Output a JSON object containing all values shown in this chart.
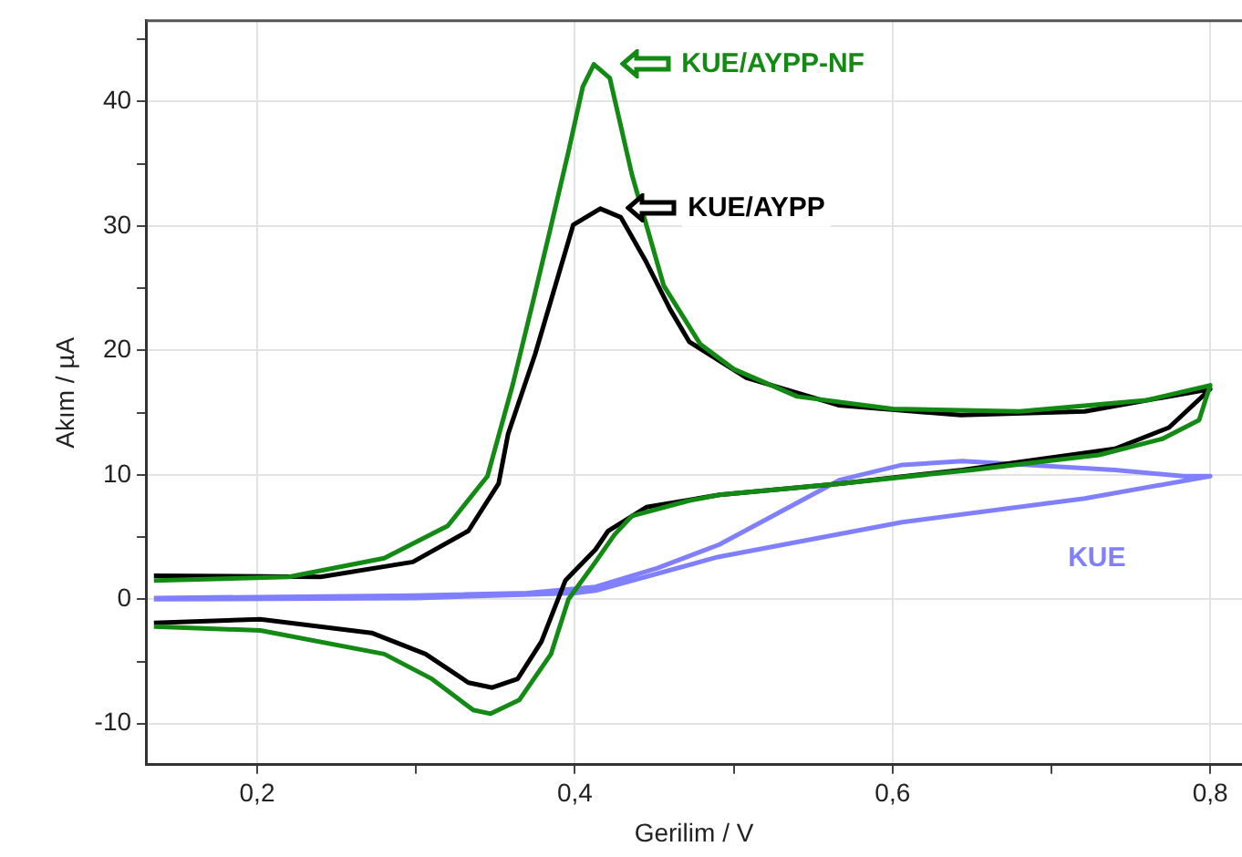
{
  "chart_data": {
    "type": "line",
    "xlabel": "Gerilim / V",
    "ylabel": "Akım / µA",
    "xlim": [
      0.13,
      0.82
    ],
    "ylim": [
      -13.3,
      46.5
    ],
    "xticks": [
      {
        "value": 0.2,
        "label": "0,2"
      },
      {
        "value": 0.3,
        "label": null
      },
      {
        "value": 0.4,
        "label": "0,4"
      },
      {
        "value": 0.5,
        "label": null
      },
      {
        "value": 0.6,
        "label": "0,6"
      },
      {
        "value": 0.7,
        "label": null
      },
      {
        "value": 0.8,
        "label": "0,8"
      }
    ],
    "yticks": [
      {
        "value": -10,
        "label": "-10"
      },
      {
        "value": -5,
        "label": null
      },
      0,
      {
        "value": 5,
        "label": null
      },
      10,
      {
        "value": 15,
        "label": null
      },
      20,
      {
        "value": 25,
        "label": null
      },
      30,
      {
        "value": 35,
        "label": null
      },
      40,
      {
        "value": 45,
        "label": null
      }
    ],
    "grid": true,
    "legend": "top",
    "marker": "none",
    "line_style": "solid",
    "series": [
      {
        "name": "KUE/AYPP-NF",
        "color": "#138a13",
        "x": [
          0.135,
          0.22,
          0.28,
          0.32,
          0.345,
          0.361,
          0.374,
          0.385,
          0.396,
          0.405,
          0.412,
          0.422,
          0.436,
          0.456,
          0.479,
          0.5,
          0.54,
          0.6,
          0.68,
          0.76,
          0.8,
          0.793,
          0.77,
          0.73,
          0.65,
          0.567,
          0.491,
          0.471,
          0.436,
          0.425,
          0.413,
          0.396,
          0.385,
          0.365,
          0.347,
          0.336,
          0.31,
          0.28,
          0.202,
          0.135
        ],
        "values": [
          1.5,
          1.8,
          3.3,
          5.9,
          9.9,
          17.3,
          24.1,
          30,
          36,
          41.2,
          43,
          41.9,
          34.1,
          25.2,
          20.5,
          18.5,
          16.3,
          15.3,
          15.1,
          16,
          17.2,
          14.4,
          12.9,
          11.6,
          10.4,
          9.3,
          8.4,
          7.9,
          6.7,
          5.2,
          3,
          0,
          -4.4,
          -8.1,
          -9.2,
          -8.9,
          -6.4,
          -4.4,
          -2.5,
          -2.2
        ]
      },
      {
        "name": "KUE/AYPP",
        "color": "#000000",
        "x": [
          0.135,
          0.24,
          0.298,
          0.333,
          0.352,
          0.358,
          0.375,
          0.39,
          0.399,
          0.416,
          0.429,
          0.445,
          0.46,
          0.472,
          0.508,
          0.566,
          0.643,
          0.721,
          0.8,
          0.774,
          0.74,
          0.644,
          0.567,
          0.491,
          0.445,
          0.421,
          0.413,
          0.394,
          0.379,
          0.364,
          0.348,
          0.333,
          0.306,
          0.272,
          0.202,
          0.135
        ],
        "values": [
          1.9,
          1.8,
          3,
          5.5,
          9.3,
          13.3,
          19.7,
          26.2,
          30.1,
          31.4,
          30.7,
          27.1,
          23.3,
          20.7,
          17.8,
          15.6,
          14.8,
          15.1,
          16.9,
          13.8,
          12.1,
          10.4,
          9.3,
          8.4,
          7.4,
          5.5,
          4,
          1.5,
          -3.4,
          -6.4,
          -7.1,
          -6.7,
          -4.4,
          -2.7,
          -1.6,
          -1.9
        ]
      },
      {
        "name": "KUE",
        "color": "#8080ff",
        "x": [
          0.135,
          0.3,
          0.4,
          0.413,
          0.49,
          0.606,
          0.721,
          0.8,
          0.783,
          0.74,
          0.644,
          0.606,
          0.567,
          0.529,
          0.491,
          0.452,
          0.413,
          0.37,
          0.3,
          0.135
        ],
        "values": [
          0,
          0.1,
          0.5,
          0.7,
          3.4,
          6.2,
          8.1,
          9.9,
          9.9,
          10.4,
          11.1,
          10.8,
          9.6,
          7,
          4.4,
          2.5,
          1,
          0.5,
          0.3,
          0.1
        ]
      }
    ]
  }
}
